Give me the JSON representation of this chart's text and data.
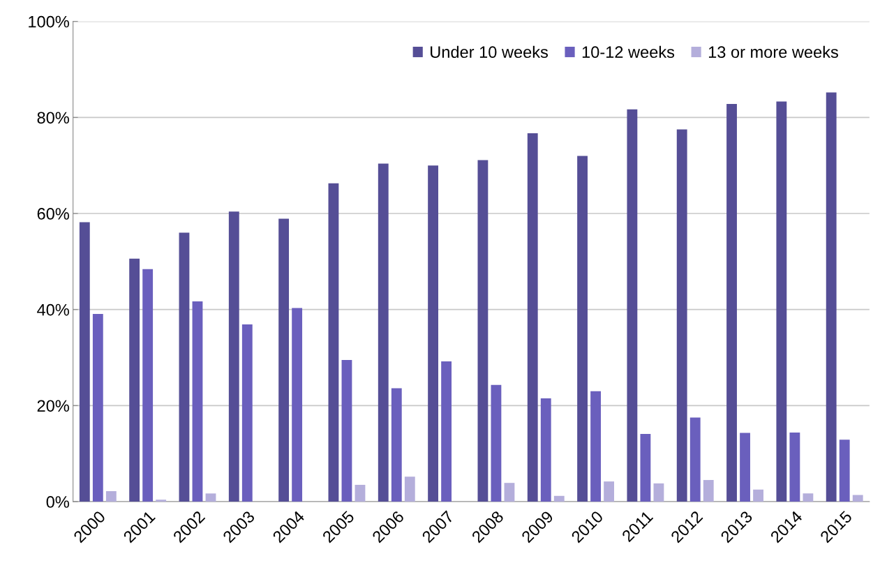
{
  "chart_data": {
    "type": "bar",
    "categories": [
      "2000",
      "2001",
      "2002",
      "2003",
      "2004",
      "2005",
      "2006",
      "2007",
      "2008",
      "2009",
      "2010",
      "2011",
      "2012",
      "2013",
      "2014",
      "2015"
    ],
    "series": [
      {
        "name": "Under 10 weeks",
        "color": "#554e96",
        "values": [
          58.2,
          50.6,
          56.0,
          60.4,
          58.9,
          66.3,
          70.4,
          70.0,
          71.1,
          76.7,
          72.0,
          81.7,
          77.5,
          82.8,
          83.3,
          85.2
        ]
      },
      {
        "name": "10-12 weeks",
        "color": "#6a5fbd",
        "values": [
          39.1,
          48.4,
          41.7,
          36.9,
          40.3,
          29.5,
          23.6,
          29.2,
          24.3,
          21.5,
          23.0,
          14.1,
          17.5,
          14.3,
          14.4,
          12.9
        ]
      },
      {
        "name": "13 or more weeks",
        "color": "#b4aedb",
        "values": [
          2.2,
          0.4,
          1.7,
          null,
          null,
          3.5,
          5.2,
          null,
          3.9,
          1.2,
          4.2,
          3.8,
          4.5,
          2.5,
          1.7,
          1.4
        ]
      }
    ],
    "ylim": [
      0,
      100
    ],
    "yticks": [
      {
        "value": 0,
        "label": "0%"
      },
      {
        "value": 20,
        "label": "20%"
      },
      {
        "value": 40,
        "label": "40%"
      },
      {
        "value": 60,
        "label": "60%"
      },
      {
        "value": 80,
        "label": "80%"
      },
      {
        "value": 100,
        "label": "100%"
      }
    ],
    "grid": "y",
    "legend": "top right"
  }
}
